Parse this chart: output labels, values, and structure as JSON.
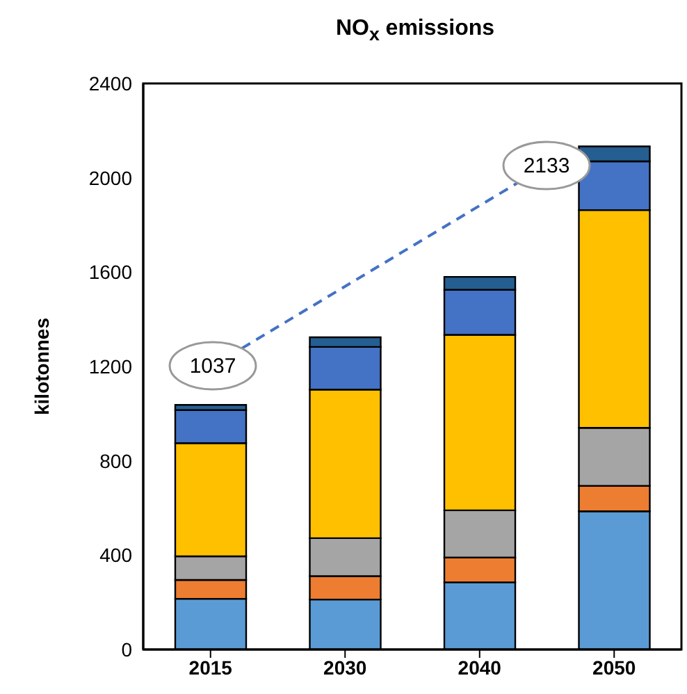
{
  "chart_data": {
    "type": "bar",
    "title": "NO$_{x}$ emissions",
    "ylabel": "kilotonnes",
    "stacked": true,
    "categories": [
      "2015",
      "2030",
      "2040",
      "2050"
    ],
    "series": [
      {
        "color": "#5b9bd5",
        "values": [
          215,
          212,
          285,
          586
        ]
      },
      {
        "color": "#ed7d31",
        "values": [
          80,
          99,
          105,
          108
        ]
      },
      {
        "color": "#a5a5a5",
        "values": [
          100,
          161,
          200,
          246
        ]
      },
      {
        "color": "#ffc000",
        "values": [
          480,
          630,
          744,
          923
        ]
      },
      {
        "color": "#4472c4",
        "values": [
          140,
          181,
          191,
          207
        ]
      },
      {
        "color": "#255e91",
        "values": [
          22,
          41,
          55,
          63
        ]
      }
    ],
    "ylim": [
      0,
      2400
    ],
    "yticks": [
      0,
      400,
      800,
      1200,
      1600,
      2000,
      2400
    ],
    "annotations": [
      "1037",
      "2133"
    ]
  }
}
